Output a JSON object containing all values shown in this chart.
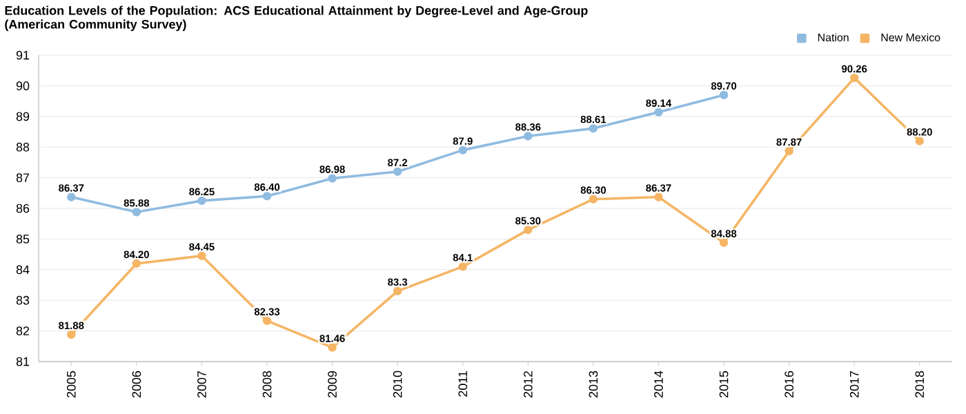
{
  "chart_data": {
    "type": "line",
    "title": "Education Levels of the Population: ACS Educational Attainment by Degree-Level and Age-Group (American Community Survey)",
    "categories": [
      "2005",
      "2006",
      "2007",
      "2008",
      "2009",
      "2010",
      "2011",
      "2012",
      "2013",
      "2014",
      "2015",
      "2016",
      "2017",
      "2018"
    ],
    "series": [
      {
        "name": "Nation",
        "color": "#8fbbe0",
        "values": [
          86.37,
          85.88,
          86.25,
          86.4,
          86.98,
          87.2,
          87.9,
          88.36,
          88.61,
          89.14,
          89.7,
          null,
          null,
          null
        ],
        "value_labels": [
          "86.37",
          "85.88",
          "86.25",
          "86.40",
          "86.98",
          "87.2",
          "87.9",
          "88.36",
          "88.61",
          "89.14",
          "89.70",
          null,
          null,
          null
        ]
      },
      {
        "name": "New Mexico",
        "color": "#f5b565",
        "values": [
          81.88,
          84.2,
          84.45,
          82.33,
          81.46,
          83.3,
          84.1,
          85.3,
          86.3,
          86.37,
          84.88,
          87.87,
          90.26,
          88.2
        ],
        "value_labels": [
          "81.88",
          "84.20",
          "84.45",
          "82.33",
          "81.46",
          "83.3",
          "84.1",
          "85.30",
          "86.30",
          "86.37",
          "84.88",
          "87.87",
          "90.26",
          "88.20"
        ]
      }
    ],
    "ylim": [
      81,
      91
    ],
    "yticks": [
      81,
      82,
      83,
      84,
      85,
      86,
      87,
      88,
      89,
      90,
      91
    ],
    "grid": "y",
    "legend": "top right",
    "marker": "circle",
    "line_style": "solid"
  }
}
